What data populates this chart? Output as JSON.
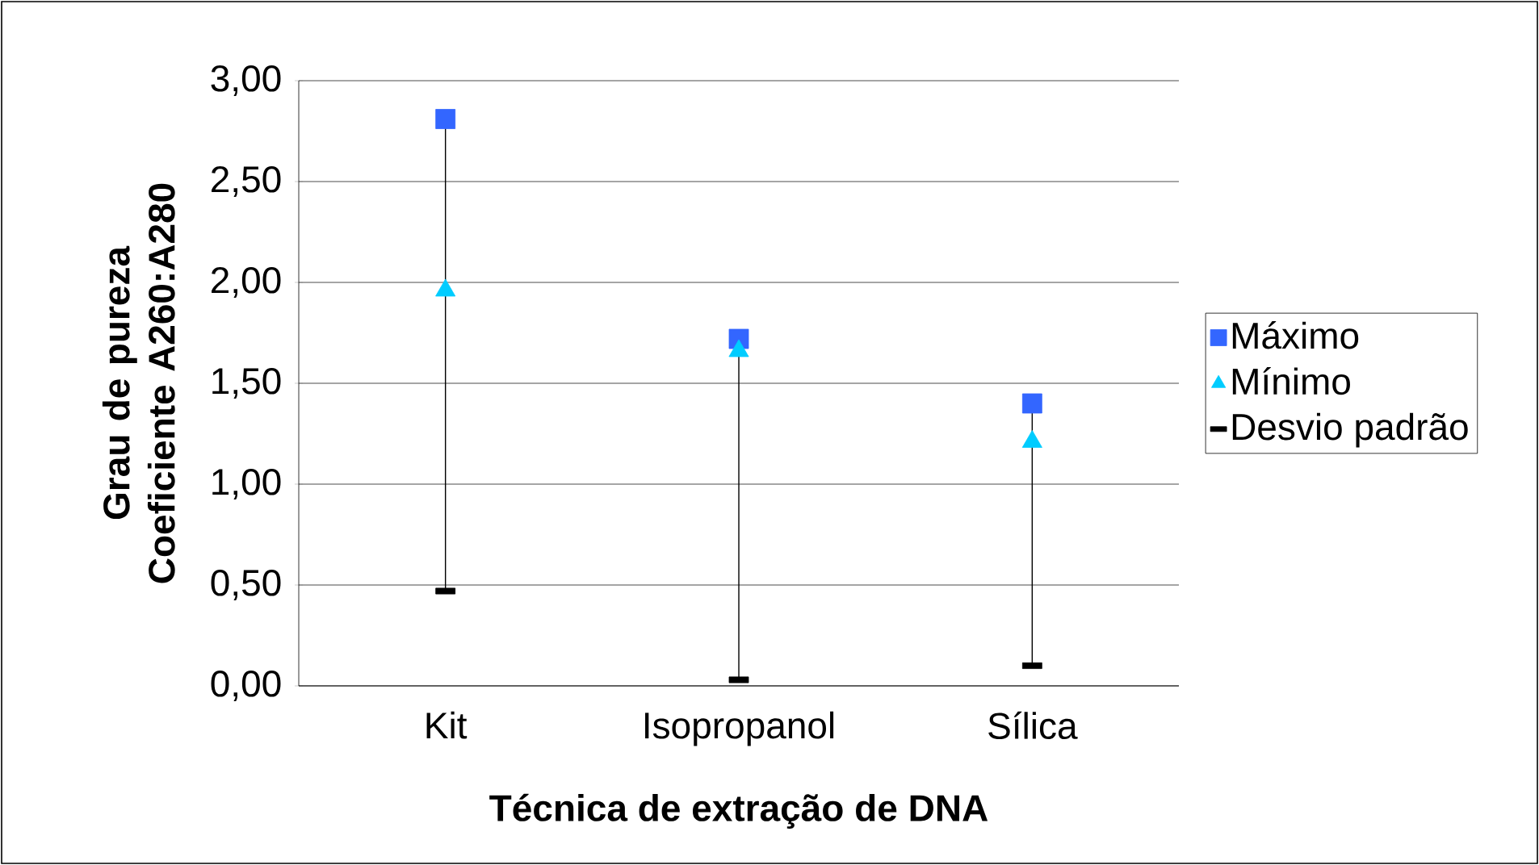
{
  "chart_data": {
    "type": "scatter",
    "categories": [
      "Kit",
      "Isopropanol",
      "Sílica"
    ],
    "series": [
      {
        "name": "Máximo",
        "color": "#3366ff",
        "marker": "square",
        "values": [
          2.81,
          1.72,
          1.4
        ]
      },
      {
        "name": "Mínimo",
        "color": "#00ccff",
        "marker": "triangle",
        "values": [
          1.96,
          1.66,
          1.21
        ]
      },
      {
        "name": "Desvio padrão",
        "color": "#000000",
        "marker": "square",
        "values": [
          0.47,
          0.03,
          0.1
        ]
      }
    ],
    "xlabel": "Técnica de extração de DNA",
    "ylabel": "Grau de pureza Coeficiente A260:A280",
    "ylim": [
      0,
      3
    ],
    "yticks": [
      {
        "value": 0,
        "label": "0,00"
      },
      {
        "value": 0.5,
        "label": "0,50"
      },
      {
        "value": 1,
        "label": "1,00"
      },
      {
        "value": 1.5,
        "label": "1,50"
      },
      {
        "value": 2,
        "label": "2,00"
      },
      {
        "value": 2.5,
        "label": "2,50"
      },
      {
        "value": 3,
        "label": "3,00"
      }
    ],
    "grid": "y",
    "legend": "right"
  }
}
